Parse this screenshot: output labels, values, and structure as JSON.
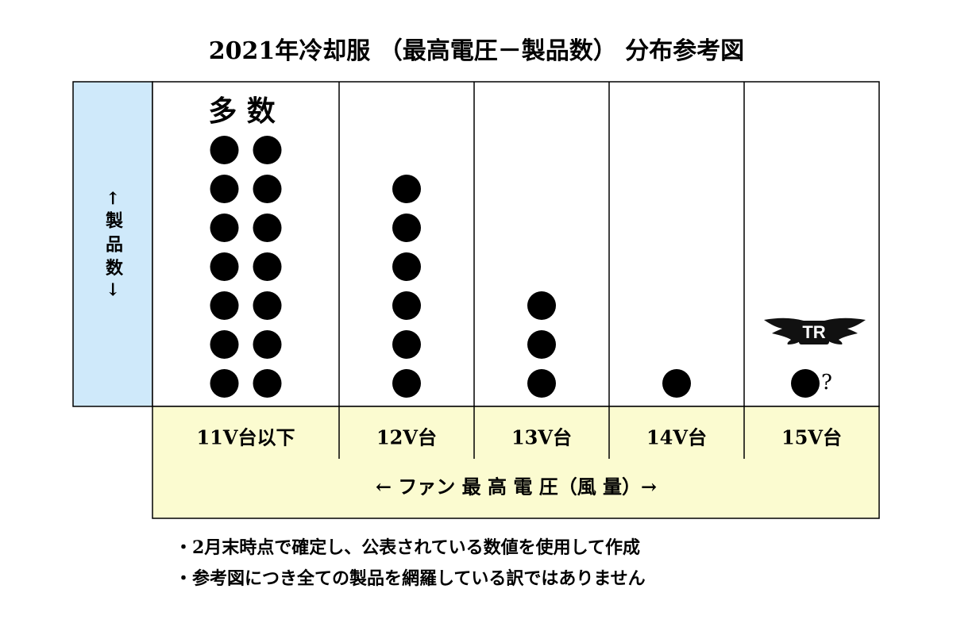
{
  "chart_data": {
    "type": "dot",
    "title": "2021年冷却服 （最高電圧－製品数） 分布参考図",
    "y_label": "← 製 品 数 →",
    "x_label": "← ファン 最 高 電 圧（風 量）→",
    "categories": [
      "11V台以下",
      "12V台",
      "13V台",
      "14V台",
      "15V台"
    ],
    "values": [
      14,
      6,
      3,
      1,
      1
    ],
    "color": "#000000",
    "annotations": [
      {
        "category": 0,
        "text": "多 数"
      },
      {
        "category": 4,
        "text": "?"
      }
    ],
    "logo_text": "TR"
  },
  "notes": [
    "・2月末時点で確定し、公表されている数値を使用して作成",
    "・参考図につき全ての製品を網羅している訳ではありません"
  ]
}
